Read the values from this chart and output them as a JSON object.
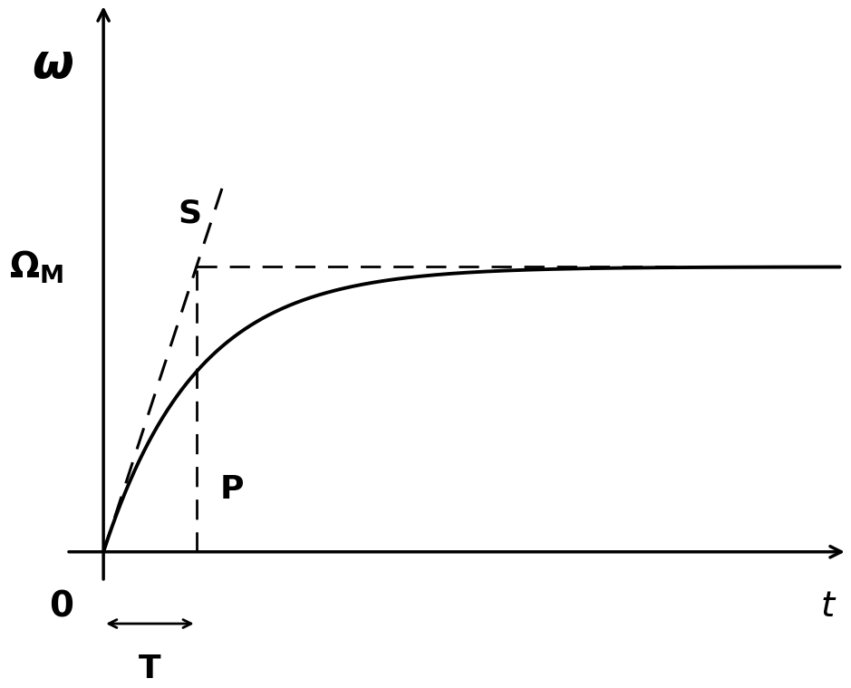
{
  "omega_M": 1.0,
  "T": 1.0,
  "t_max": 8.0,
  "bg_color": "#ffffff",
  "line_color": "#000000",
  "font_size_omega": 38,
  "font_size_labels": 28,
  "font_size_ann": 26
}
